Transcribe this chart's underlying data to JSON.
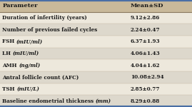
{
  "headers": [
    "Parameter",
    "Mean±SD"
  ],
  "rows": [
    [
      "Duration of infertility (years)",
      "9.12±2.86"
    ],
    [
      "Number of previous failed cycles",
      "2.24±0.47"
    ],
    [
      "FSH (mIU/ml)",
      "6.37±1.93"
    ],
    [
      "LH (mIU/ml)",
      "4.06±1.43"
    ],
    [
      "AMH (ng/ml)",
      "4.04±1.62"
    ],
    [
      "Antral follicle count (AFC)",
      "10.08±2.94"
    ],
    [
      "TSH (mIU/L)",
      "2.85±0.77"
    ],
    [
      "Baseline endometrial thickness (mm)",
      "8.29±0.88"
    ]
  ],
  "italic_rows": [
    2,
    3,
    4,
    6,
    7
  ],
  "bg_color": "#ede8dc",
  "header_bg": "#c9b99a",
  "alt_row_bg": "#ddd8cc",
  "even_row_bg": "#ede8dc",
  "top_border_color": "#4a6fa5",
  "bottom_border_color": "#4a6fa5",
  "header_sep_color": "#8a7a60",
  "text_color": "#1a1a1a",
  "col_split": 0.67,
  "fig_width": 2.69,
  "fig_height": 1.5,
  "dpi": 100,
  "header_fs": 6.0,
  "row_fs": 5.2
}
